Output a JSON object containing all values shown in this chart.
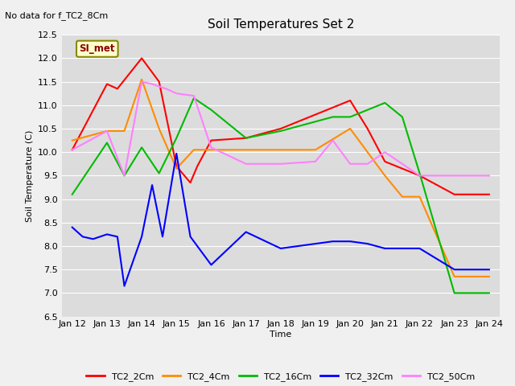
{
  "title": "Soil Temperatures Set 2",
  "xlabel": "Time",
  "ylabel": "Soil Temperature (C)",
  "ylim": [
    6.5,
    12.5
  ],
  "no_data_text": "No data for f_TC2_8Cm",
  "annotation_text": "SI_met",
  "x_ticks": [
    "Jan 12",
    "Jan 13",
    "Jan 14",
    "Jan 15",
    "Jan 16",
    "Jan 17",
    "Jan 18",
    "Jan 19",
    "Jan 20",
    "Jan 21",
    "Jan 22",
    "Jan 23",
    "Jan 24"
  ],
  "series": {
    "TC2_2Cm": {
      "color": "#ff0000",
      "x": [
        0,
        1,
        1.3,
        2,
        2.5,
        3,
        3.4,
        3.6,
        4,
        5,
        6,
        7,
        8,
        8.5,
        9,
        10,
        11,
        12
      ],
      "y": [
        10.05,
        11.45,
        11.35,
        12.0,
        11.5,
        9.7,
        9.35,
        9.7,
        10.25,
        10.3,
        10.5,
        10.8,
        11.1,
        10.5,
        9.8,
        9.5,
        9.1,
        9.1
      ]
    },
    "TC2_4Cm": {
      "color": "#ff8c00",
      "x": [
        0,
        1,
        1.5,
        2,
        2.5,
        3,
        3.5,
        4,
        5,
        6,
        7,
        8,
        9,
        9.5,
        10,
        11,
        12
      ],
      "y": [
        10.25,
        10.45,
        10.45,
        11.55,
        10.5,
        9.65,
        10.05,
        10.05,
        10.05,
        10.05,
        10.05,
        10.5,
        9.5,
        9.05,
        9.05,
        7.35,
        7.35
      ]
    },
    "TC2_16Cm": {
      "color": "#00bb00",
      "x": [
        0,
        1,
        1.5,
        2,
        2.5,
        3,
        3.5,
        4,
        5,
        6,
        7,
        7.5,
        8,
        9,
        9.5,
        10,
        11,
        12
      ],
      "y": [
        9.1,
        10.2,
        9.5,
        10.1,
        9.55,
        10.3,
        11.15,
        10.9,
        10.3,
        10.45,
        10.65,
        10.75,
        10.75,
        11.05,
        10.75,
        9.55,
        7.0,
        7.0
      ]
    },
    "TC2_32Cm": {
      "color": "#0000ff",
      "x": [
        0,
        0.3,
        0.6,
        1,
        1.3,
        1.5,
        2,
        2.3,
        2.6,
        3,
        3.4,
        4,
        5,
        6,
        7,
        7.5,
        8,
        8.5,
        9,
        10,
        11,
        12
      ],
      "y": [
        8.4,
        8.2,
        8.15,
        8.25,
        8.2,
        7.15,
        8.2,
        9.3,
        8.2,
        9.97,
        8.2,
        7.6,
        8.3,
        7.95,
        8.05,
        8.1,
        8.1,
        8.05,
        7.95,
        7.95,
        7.5,
        7.5
      ]
    },
    "TC2_50Cm": {
      "color": "#ff80ff",
      "x": [
        0,
        1,
        1.5,
        2,
        2.3,
        2.7,
        3,
        3.5,
        4,
        5,
        6,
        7,
        7.5,
        8,
        8.5,
        9,
        10,
        11,
        12
      ],
      "y": [
        10.05,
        10.45,
        9.5,
        11.5,
        11.45,
        11.35,
        11.25,
        11.2,
        10.1,
        9.75,
        9.75,
        9.8,
        10.25,
        9.75,
        9.75,
        10.0,
        9.5,
        9.5,
        9.5
      ]
    }
  }
}
